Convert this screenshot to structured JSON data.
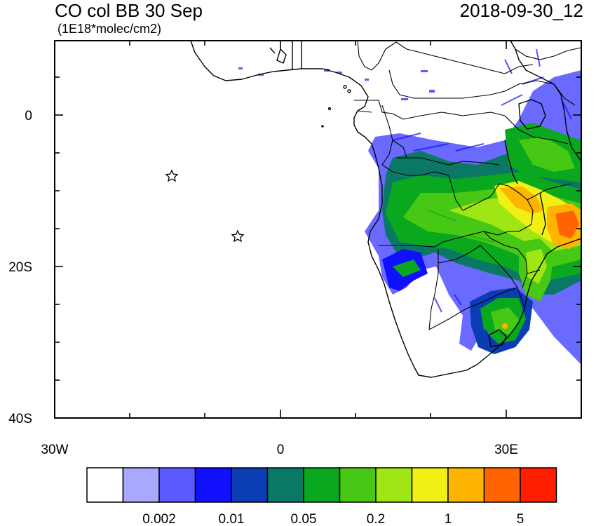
{
  "header": {
    "title": "CO col BB 30 Sep",
    "timestamp": "2018-09-30_12",
    "units": "(1E18*molec/cm2)"
  },
  "map": {
    "lon_range": [
      -30,
      40
    ],
    "lat_range": [
      -40,
      10
    ],
    "lat_labels": [
      "0",
      "20S",
      "40S"
    ],
    "lon_labels": [
      "30W",
      "0",
      "30E"
    ],
    "stations": [
      {
        "name": "station-star-1",
        "lon": -14.4,
        "lat": -7.9
      },
      {
        "name": "station-star-2",
        "lon": -5.7,
        "lat": -15.9
      }
    ]
  },
  "colorbar": {
    "colors": [
      "#ffffff",
      "#a8a8ff",
      "#5a5aff",
      "#1010ff",
      "#0a3cb4",
      "#0a7864",
      "#0aa81e",
      "#46c814",
      "#a0e614",
      "#f0f014",
      "#ffb400",
      "#ff6400",
      "#ff1e00"
    ],
    "labels": [
      "0.002",
      "0.01",
      "0.05",
      "0.2",
      "1",
      "5"
    ]
  }
}
